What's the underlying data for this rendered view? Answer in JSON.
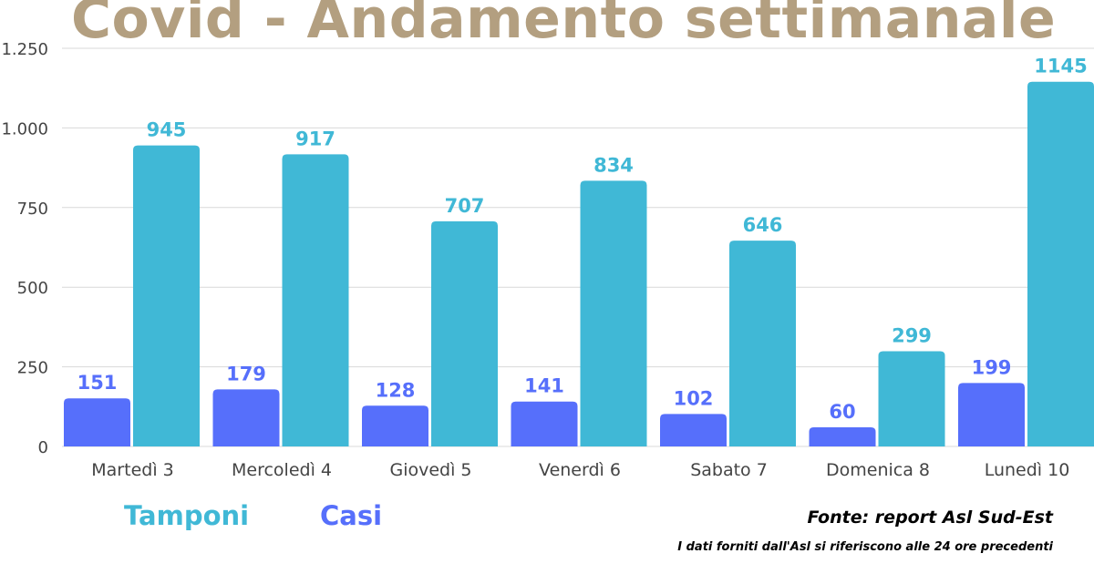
{
  "colors": {
    "title": "#b39f80",
    "tamponi": "#40b8d6",
    "casi": "#566ffb",
    "grid": "#d9d9d9",
    "axis_text": "#444444"
  },
  "chart_data": {
    "type": "bar",
    "title": "Covid - Andamento settimanale",
    "categories": [
      "Martedì 3",
      "Mercoledì 4",
      "Giovedì 5",
      "Venerdì 6",
      "Sabato 7",
      "Domenica 8",
      "Lunedì 10"
    ],
    "series": [
      {
        "name": "Casi",
        "values": [
          151,
          179,
          128,
          141,
          102,
          60,
          199
        ]
      },
      {
        "name": "Tamponi",
        "values": [
          945,
          917,
          707,
          834,
          646,
          299,
          1145
        ]
      }
    ],
    "ylim": [
      0,
      1250
    ],
    "yticks": [
      0,
      250,
      500,
      750,
      1000,
      1250
    ],
    "ytick_labels": [
      "0",
      "250",
      "500",
      "750",
      "1.000",
      "1.250"
    ],
    "grid": true,
    "data_labels": true,
    "legend_position": "bottom-left"
  },
  "legend": {
    "tamponi": "Tamponi",
    "casi": "Casi"
  },
  "footer": {
    "source": "Fonte: report Asl Sud-Est",
    "note": "I dati forniti dall'Asl si riferiscono alle 24 ore precedenti"
  }
}
